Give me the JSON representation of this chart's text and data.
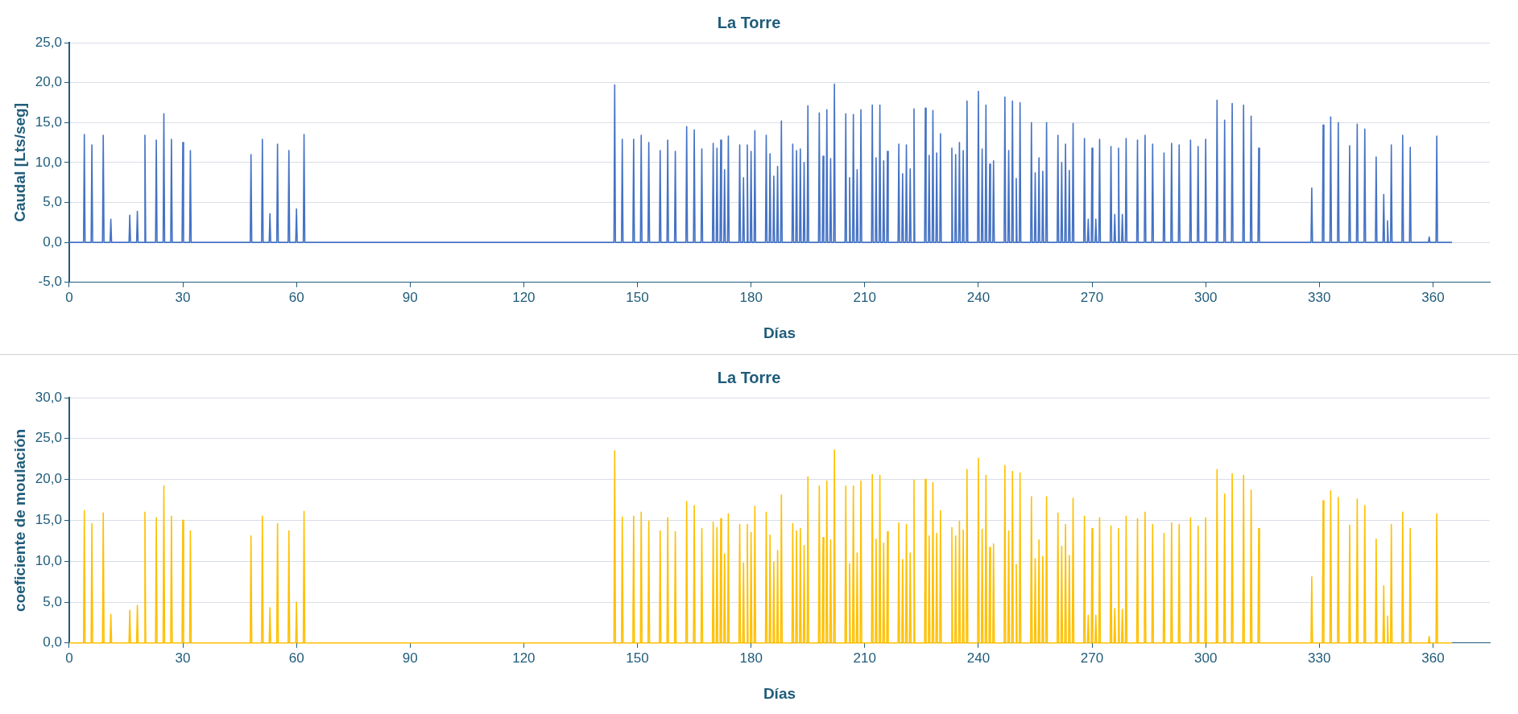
{
  "chart_data": [
    {
      "type": "line",
      "title": "La Torre",
      "xlabel": "Días",
      "ylabel": "Caudal [Lts/seg]",
      "xlim": [
        0,
        375
      ],
      "xticks": [
        0,
        30,
        60,
        90,
        120,
        150,
        180,
        210,
        240,
        270,
        300,
        330,
        360
      ],
      "ylim": [
        -5,
        25
      ],
      "yticks": [
        {
          "value": -5,
          "label": "-5,0"
        },
        {
          "value": 0,
          "label": "0,0"
        },
        {
          "value": 5,
          "label": "5,0"
        },
        {
          "value": 10,
          "label": "10,0"
        },
        {
          "value": 15,
          "label": "15,0"
        },
        {
          "value": 20,
          "label": "20,0"
        },
        {
          "value": 25,
          "label": "25,0"
        }
      ],
      "grid": "y",
      "legend": false,
      "marker": "none",
      "line_style": "solid",
      "series": [
        {
          "color": "#4472c4",
          "x": [
            0,
            3.8,
            4,
            4.2,
            5.8,
            6,
            6.2,
            8.8,
            9,
            9.2,
            10.8,
            11,
            11.2,
            15.8,
            16,
            16.2,
            17.8,
            18,
            18.2,
            19.8,
            20,
            20.2,
            22.8,
            23,
            23.2,
            24.8,
            25,
            25.2,
            26.8,
            27,
            27.2,
            29.8,
            30,
            30.2,
            31.8,
            32,
            32.2,
            47.8,
            48,
            48.2,
            50.8,
            51,
            51.2,
            52.8,
            53,
            53.2,
            54.8,
            55,
            55.2,
            57.8,
            58,
            58.2,
            59.8,
            60,
            60.2,
            61.8,
            62,
            62.2,
            143.8,
            144,
            144.2,
            145.8,
            146,
            146.2,
            148.8,
            149,
            149.2,
            150.8,
            151,
            151.2,
            152.8,
            153,
            153.2,
            155.8,
            156,
            156.2,
            157.8,
            158,
            158.2,
            159.8,
            160,
            160.2,
            162.8,
            163,
            163.2,
            164.8,
            165,
            165.2,
            166.8,
            167,
            167.2,
            169.8,
            170,
            170.2,
            170.8,
            171,
            171.2,
            171.8,
            172,
            172.2,
            172.8,
            173,
            173.2,
            173.8,
            174,
            174.2,
            176.8,
            177,
            177.2,
            177.8,
            178,
            178.2,
            178.8,
            179,
            179.2,
            179.8,
            180,
            180.2,
            180.8,
            181,
            181.2,
            183.8,
            184,
            184.2,
            184.8,
            185,
            185.2,
            185.8,
            186,
            186.2,
            186.8,
            187,
            187.2,
            187.8,
            188,
            188.2,
            190.8,
            191,
            191.2,
            191.8,
            192,
            192.2,
            192.8,
            193,
            193.2,
            193.8,
            194,
            194.2,
            194.8,
            195,
            195.2,
            197.8,
            198,
            198.2,
            198.8,
            199,
            199.2,
            199.8,
            200,
            200.2,
            200.8,
            201,
            201.2,
            201.8,
            202,
            202.2,
            204.8,
            205,
            205.2,
            205.8,
            206,
            206.2,
            206.8,
            207,
            207.2,
            207.8,
            208,
            208.2,
            208.8,
            209,
            209.2,
            211.8,
            212,
            212.2,
            212.8,
            213,
            213.2,
            213.8,
            214,
            214.2,
            214.8,
            215,
            215.2,
            215.8,
            216,
            216.2,
            218.8,
            219,
            219.2,
            219.8,
            220,
            220.2,
            220.8,
            221,
            221.2,
            221.8,
            222,
            222.2,
            222.8,
            223,
            223.2,
            225.8,
            226,
            226.2,
            226.8,
            227,
            227.2,
            227.8,
            228,
            228.2,
            228.8,
            229,
            229.2,
            229.8,
            230,
            230.2,
            232.8,
            233,
            233.2,
            233.8,
            234,
            234.2,
            234.8,
            235,
            235.2,
            235.8,
            236,
            236.2,
            236.8,
            237,
            237.2,
            239.8,
            240,
            240.2,
            240.8,
            241,
            241.2,
            241.8,
            242,
            242.2,
            242.8,
            243,
            243.2,
            243.8,
            244,
            244.2,
            246.8,
            247,
            247.2,
            247.8,
            248,
            248.2,
            248.8,
            249,
            249.2,
            249.8,
            250,
            250.2,
            250.8,
            251,
            251.2,
            253.8,
            254,
            254.2,
            254.8,
            255,
            255.2,
            255.8,
            256,
            256.2,
            256.8,
            257,
            257.2,
            257.8,
            258,
            258.2,
            260.8,
            261,
            261.2,
            261.8,
            262,
            262.2,
            262.8,
            263,
            263.2,
            263.8,
            264,
            264.2,
            264.8,
            265,
            265.2,
            267.8,
            268,
            268.2,
            268.8,
            269,
            269.2,
            269.8,
            270,
            270.2,
            270.8,
            271,
            271.2,
            271.8,
            272,
            272.2,
            274.8,
            275,
            275.2,
            275.8,
            276,
            276.2,
            276.8,
            277,
            277.2,
            277.8,
            278,
            278.2,
            278.8,
            279,
            279.2,
            281.8,
            282,
            282.2,
            283.8,
            284,
            284.2,
            285.8,
            286,
            286.2,
            288.8,
            289,
            289.2,
            290.8,
            291,
            291.2,
            292.8,
            293,
            293.2,
            295.8,
            296,
            296.2,
            297.8,
            298,
            298.2,
            299.8,
            300,
            300.2,
            302.8,
            303,
            303.2,
            304.8,
            305,
            305.2,
            306.8,
            307,
            307.2,
            309.8,
            310,
            310.2,
            311.8,
            312,
            312.2,
            313.8,
            314,
            314.2,
            327.8,
            328,
            328.2,
            330.8,
            331,
            331.2,
            332.8,
            333,
            333.2,
            334.8,
            335,
            335.2,
            337.8,
            338,
            338.2,
            339.8,
            340,
            340.2,
            341.8,
            342,
            342.2,
            344.8,
            345,
            345.2,
            346.8,
            347,
            347.2,
            347.8,
            348,
            348.2,
            348.8,
            349,
            349.2,
            351.8,
            352,
            352.2,
            353.8,
            354,
            354.2,
            358.8,
            359,
            359.2,
            360.8,
            361,
            361.2,
            365
          ],
          "values": [
            0,
            0,
            13.5,
            0,
            0,
            12.2,
            0,
            0,
            13.4,
            0,
            0,
            2.9,
            0,
            0,
            3.4,
            0,
            0,
            3.9,
            0,
            0,
            13.4,
            0,
            0,
            12.8,
            0,
            0,
            16.1,
            0,
            0,
            12.9,
            0,
            0,
            12.5,
            0,
            0,
            11.5,
            0,
            0,
            11.0,
            0,
            0,
            12.9,
            0,
            0,
            3.6,
            0,
            0,
            12.3,
            0,
            0,
            11.5,
            0,
            0,
            4.2,
            0,
            0,
            13.5,
            0,
            0,
            19.7,
            0,
            0,
            12.9,
            0,
            0,
            12.9,
            0,
            0,
            13.4,
            0,
            0,
            12.5,
            0,
            0,
            11.5,
            0,
            0,
            12.8,
            0,
            0,
            11.4,
            0,
            0,
            14.5,
            0,
            0,
            14.1,
            0,
            0,
            11.7,
            0,
            0,
            12.4,
            0,
            0,
            11.8,
            0,
            0,
            12.8,
            0,
            0,
            9.1,
            0,
            0,
            13.3,
            0,
            0,
            12.2,
            0,
            0,
            8.1,
            0,
            0,
            12.2,
            0,
            0,
            11.4,
            0,
            0,
            14.0,
            0,
            0,
            13.4,
            0,
            0,
            11.1,
            0,
            0,
            8.3,
            0,
            0,
            9.5,
            0,
            0,
            15.2,
            0,
            0,
            12.3,
            0,
            0,
            11.5,
            0,
            0,
            11.7,
            0,
            0,
            10.0,
            0,
            0,
            17.1,
            0,
            0,
            16.2,
            0,
            0,
            10.8,
            0,
            0,
            16.6,
            0,
            0,
            10.5,
            0,
            0,
            19.8,
            0,
            0,
            16.1,
            0,
            0,
            8.1,
            0,
            0,
            16.0,
            0,
            0,
            9.1,
            0,
            0,
            16.6,
            0,
            0,
            17.2,
            0,
            0,
            10.6,
            0,
            0,
            17.2,
            0,
            0,
            10.2,
            0,
            0,
            11.4,
            0,
            0,
            12.3,
            0,
            0,
            8.6,
            0,
            0,
            12.2,
            0,
            0,
            9.2,
            0,
            0,
            16.7,
            0,
            0,
            16.8,
            0,
            0,
            10.9,
            0,
            0,
            16.5,
            0,
            0,
            11.2,
            0,
            0,
            13.6,
            0,
            0,
            11.8,
            0,
            0,
            11.0,
            0,
            0,
            12.5,
            0,
            0,
            11.5,
            0,
            0,
            17.7,
            0,
            0,
            18.9,
            0,
            0,
            11.7,
            0,
            0,
            17.2,
            0,
            0,
            9.8,
            0,
            0,
            10.2,
            0,
            0,
            18.2,
            0,
            0,
            11.5,
            0,
            0,
            17.7,
            0,
            0,
            8.0,
            0,
            0,
            17.5,
            0,
            0,
            15.0,
            0,
            0,
            8.7,
            0,
            0,
            10.6,
            0,
            0,
            8.9,
            0,
            0,
            15.0,
            0,
            0,
            13.4,
            0,
            0,
            10.0,
            0,
            0,
            12.3,
            0,
            0,
            9.0,
            0,
            0,
            14.9,
            0,
            0,
            13.0,
            0,
            0,
            2.9,
            0,
            0,
            11.8,
            0,
            0,
            2.9,
            0,
            0,
            12.9,
            0,
            0,
            12.0,
            0,
            0,
            3.5,
            0,
            0,
            11.8,
            0,
            0,
            3.5,
            0,
            0,
            13.0,
            0,
            0,
            12.8,
            0,
            0,
            13.4,
            0,
            0,
            12.3,
            0,
            0,
            11.2,
            0,
            0,
            12.4,
            0,
            0,
            12.2,
            0,
            0,
            12.8,
            0,
            0,
            12.0,
            0,
            0,
            12.9,
            0,
            0,
            17.8,
            0,
            0,
            15.3,
            0,
            0,
            17.4,
            0,
            0,
            17.2,
            0,
            0,
            15.8,
            0,
            0,
            11.8,
            0,
            0,
            6.8,
            0,
            0,
            14.7,
            0,
            0,
            15.7,
            0,
            0,
            15.0,
            0,
            0,
            12.1,
            0,
            0,
            14.8,
            0,
            0,
            14.2,
            0,
            0,
            10.7,
            0,
            0,
            6.0,
            0,
            0,
            2.7,
            0,
            0,
            12.2,
            0,
            0,
            13.4,
            0,
            0,
            11.9,
            0,
            0,
            0.7,
            0,
            0,
            13.3,
            0,
            0
          ]
        }
      ]
    },
    {
      "type": "line",
      "title": "La Torre",
      "xlabel": "Días",
      "ylabel": "coeficiente de moulación",
      "xlim": [
        0,
        375
      ],
      "xticks": [
        0,
        30,
        60,
        90,
        120,
        150,
        180,
        210,
        240,
        270,
        300,
        330,
        360
      ],
      "ylim": [
        0,
        30
      ],
      "yticks": [
        {
          "value": 0,
          "label": "0,0"
        },
        {
          "value": 5,
          "label": "5,0"
        },
        {
          "value": 10,
          "label": "10,0"
        },
        {
          "value": 15,
          "label": "15,0"
        },
        {
          "value": 20,
          "label": "20,0"
        },
        {
          "value": 25,
          "label": "25,0"
        },
        {
          "value": 30,
          "label": "30,0"
        }
      ],
      "grid": "y",
      "legend": false,
      "marker": "none",
      "line_style": "solid",
      "series": [
        {
          "color": "#ffc000",
          "x": [
            0,
            3.8,
            4,
            4.2,
            5.8,
            6,
            6.2,
            8.8,
            9,
            9.2,
            10.8,
            11,
            11.2,
            15.8,
            16,
            16.2,
            17.8,
            18,
            18.2,
            19.8,
            20,
            20.2,
            22.8,
            23,
            23.2,
            24.8,
            25,
            25.2,
            26.8,
            27,
            27.2,
            29.8,
            30,
            30.2,
            31.8,
            32,
            32.2,
            47.8,
            48,
            48.2,
            50.8,
            51,
            51.2,
            52.8,
            53,
            53.2,
            54.8,
            55,
            55.2,
            57.8,
            58,
            58.2,
            59.8,
            60,
            60.2,
            61.8,
            62,
            62.2,
            143.8,
            144,
            144.2,
            145.8,
            146,
            146.2,
            148.8,
            149,
            149.2,
            150.8,
            151,
            151.2,
            152.8,
            153,
            153.2,
            155.8,
            156,
            156.2,
            157.8,
            158,
            158.2,
            159.8,
            160,
            160.2,
            162.8,
            163,
            163.2,
            164.8,
            165,
            165.2,
            166.8,
            167,
            167.2,
            169.8,
            170,
            170.2,
            170.8,
            171,
            171.2,
            171.8,
            172,
            172.2,
            172.8,
            173,
            173.2,
            173.8,
            174,
            174.2,
            176.8,
            177,
            177.2,
            177.8,
            178,
            178.2,
            178.8,
            179,
            179.2,
            179.8,
            180,
            180.2,
            180.8,
            181,
            181.2,
            183.8,
            184,
            184.2,
            184.8,
            185,
            185.2,
            185.8,
            186,
            186.2,
            186.8,
            187,
            187.2,
            187.8,
            188,
            188.2,
            190.8,
            191,
            191.2,
            191.8,
            192,
            192.2,
            192.8,
            193,
            193.2,
            193.8,
            194,
            194.2,
            194.8,
            195,
            195.2,
            197.8,
            198,
            198.2,
            198.8,
            199,
            199.2,
            199.8,
            200,
            200.2,
            200.8,
            201,
            201.2,
            201.8,
            202,
            202.2,
            204.8,
            205,
            205.2,
            205.8,
            206,
            206.2,
            206.8,
            207,
            207.2,
            207.8,
            208,
            208.2,
            208.8,
            209,
            209.2,
            211.8,
            212,
            212.2,
            212.8,
            213,
            213.2,
            213.8,
            214,
            214.2,
            214.8,
            215,
            215.2,
            215.8,
            216,
            216.2,
            218.8,
            219,
            219.2,
            219.8,
            220,
            220.2,
            220.8,
            221,
            221.2,
            221.8,
            222,
            222.2,
            222.8,
            223,
            223.2,
            225.8,
            226,
            226.2,
            226.8,
            227,
            227.2,
            227.8,
            228,
            228.2,
            228.8,
            229,
            229.2,
            229.8,
            230,
            230.2,
            232.8,
            233,
            233.2,
            233.8,
            234,
            234.2,
            234.8,
            235,
            235.2,
            235.8,
            236,
            236.2,
            236.8,
            237,
            237.2,
            239.8,
            240,
            240.2,
            240.8,
            241,
            241.2,
            241.8,
            242,
            242.2,
            242.8,
            243,
            243.2,
            243.8,
            244,
            244.2,
            246.8,
            247,
            247.2,
            247.8,
            248,
            248.2,
            248.8,
            249,
            249.2,
            249.8,
            250,
            250.2,
            250.8,
            251,
            251.2,
            253.8,
            254,
            254.2,
            254.8,
            255,
            255.2,
            255.8,
            256,
            256.2,
            256.8,
            257,
            257.2,
            257.8,
            258,
            258.2,
            260.8,
            261,
            261.2,
            261.8,
            262,
            262.2,
            262.8,
            263,
            263.2,
            263.8,
            264,
            264.2,
            264.8,
            265,
            265.2,
            267.8,
            268,
            268.2,
            268.8,
            269,
            269.2,
            269.8,
            270,
            270.2,
            270.8,
            271,
            271.2,
            271.8,
            272,
            272.2,
            274.8,
            275,
            275.2,
            275.8,
            276,
            276.2,
            276.8,
            277,
            277.2,
            277.8,
            278,
            278.2,
            278.8,
            279,
            279.2,
            281.8,
            282,
            282.2,
            283.8,
            284,
            284.2,
            285.8,
            286,
            286.2,
            288.8,
            289,
            289.2,
            290.8,
            291,
            291.2,
            292.8,
            293,
            293.2,
            295.8,
            296,
            296.2,
            297.8,
            298,
            298.2,
            299.8,
            300,
            300.2,
            302.8,
            303,
            303.2,
            304.8,
            305,
            305.2,
            306.8,
            307,
            307.2,
            309.8,
            310,
            310.2,
            311.8,
            312,
            312.2,
            313.8,
            314,
            314.2,
            327.8,
            328,
            328.2,
            330.8,
            331,
            331.2,
            332.8,
            333,
            333.2,
            334.8,
            335,
            335.2,
            337.8,
            338,
            338.2,
            339.8,
            340,
            340.2,
            341.8,
            342,
            342.2,
            344.8,
            345,
            345.2,
            346.8,
            347,
            347.2,
            347.8,
            348,
            348.2,
            348.8,
            349,
            349.2,
            351.8,
            352,
            352.2,
            353.8,
            354,
            354.2,
            358.8,
            359,
            359.2,
            360.8,
            361,
            361.2,
            365
          ],
          "values": [
            0,
            0,
            16.2,
            0,
            0,
            14.6,
            0,
            0,
            15.9,
            0,
            0,
            3.5,
            0,
            0,
            4.0,
            0,
            0,
            4.6,
            0,
            0,
            16.0,
            0,
            0,
            15.3,
            0,
            0,
            19.2,
            0,
            0,
            15.5,
            0,
            0,
            15.0,
            0,
            0,
            13.7,
            0,
            0,
            13.1,
            0,
            0,
            15.5,
            0,
            0,
            4.3,
            0,
            0,
            14.6,
            0,
            0,
            13.7,
            0,
            0,
            5.0,
            0,
            0,
            16.1,
            0,
            0,
            23.5,
            0,
            0,
            15.4,
            0,
            0,
            15.5,
            0,
            0,
            16.0,
            0,
            0,
            14.9,
            0,
            0,
            13.7,
            0,
            0,
            15.3,
            0,
            0,
            13.6,
            0,
            0,
            17.3,
            0,
            0,
            16.8,
            0,
            0,
            14.0,
            0,
            0,
            14.8,
            0,
            0,
            14.1,
            0,
            0,
            15.2,
            0,
            0,
            10.9,
            0,
            0,
            15.8,
            0,
            0,
            14.5,
            0,
            0,
            9.8,
            0,
            0,
            14.5,
            0,
            0,
            13.5,
            0,
            0,
            16.7,
            0,
            0,
            16.0,
            0,
            0,
            13.2,
            0,
            0,
            9.9,
            0,
            0,
            11.3,
            0,
            0,
            18.1,
            0,
            0,
            14.6,
            0,
            0,
            13.7,
            0,
            0,
            14.0,
            0,
            0,
            11.9,
            0,
            0,
            20.3,
            0,
            0,
            19.2,
            0,
            0,
            12.9,
            0,
            0,
            19.8,
            0,
            0,
            12.6,
            0,
            0,
            23.6,
            0,
            0,
            19.2,
            0,
            0,
            9.7,
            0,
            0,
            19.2,
            0,
            0,
            11.0,
            0,
            0,
            19.8,
            0,
            0,
            20.6,
            0,
            0,
            12.7,
            0,
            0,
            20.5,
            0,
            0,
            12.2,
            0,
            0,
            13.6,
            0,
            0,
            14.7,
            0,
            0,
            10.2,
            0,
            0,
            14.5,
            0,
            0,
            11.0,
            0,
            0,
            19.9,
            0,
            0,
            20.0,
            0,
            0,
            13.1,
            0,
            0,
            19.6,
            0,
            0,
            13.4,
            0,
            0,
            16.2,
            0,
            0,
            14.1,
            0,
            0,
            13.1,
            0,
            0,
            14.9,
            0,
            0,
            13.8,
            0,
            0,
            21.2,
            0,
            0,
            22.6,
            0,
            0,
            13.9,
            0,
            0,
            20.5,
            0,
            0,
            11.7,
            0,
            0,
            12.1,
            0,
            0,
            21.7,
            0,
            0,
            13.7,
            0,
            0,
            21.0,
            0,
            0,
            9.6,
            0,
            0,
            20.8,
            0,
            0,
            17.9,
            0,
            0,
            10.3,
            0,
            0,
            12.6,
            0,
            0,
            10.6,
            0,
            0,
            17.9,
            0,
            0,
            15.9,
            0,
            0,
            11.8,
            0,
            0,
            14.5,
            0,
            0,
            10.7,
            0,
            0,
            17.7,
            0,
            0,
            15.5,
            0,
            0,
            3.4,
            0,
            0,
            14.0,
            0,
            0,
            3.4,
            0,
            0,
            15.3,
            0,
            0,
            14.3,
            0,
            0,
            4.2,
            0,
            0,
            14.0,
            0,
            0,
            4.1,
            0,
            0,
            15.5,
            0,
            0,
            15.2,
            0,
            0,
            16.0,
            0,
            0,
            14.5,
            0,
            0,
            13.4,
            0,
            0,
            14.7,
            0,
            0,
            14.5,
            0,
            0,
            15.3,
            0,
            0,
            14.3,
            0,
            0,
            15.3,
            0,
            0,
            21.2,
            0,
            0,
            18.2,
            0,
            0,
            20.7,
            0,
            0,
            20.5,
            0,
            0,
            18.7,
            0,
            0,
            14.0,
            0,
            0,
            8.1,
            0,
            0,
            17.4,
            0,
            0,
            18.6,
            0,
            0,
            17.8,
            0,
            0,
            14.4,
            0,
            0,
            17.6,
            0,
            0,
            16.8,
            0,
            0,
            12.7,
            0,
            0,
            7.0,
            0,
            0,
            3.3,
            0,
            0,
            14.5,
            0,
            0,
            16.0,
            0,
            0,
            14.0,
            0,
            0,
            0.8,
            0,
            0,
            15.8,
            0,
            0
          ]
        }
      ]
    }
  ]
}
